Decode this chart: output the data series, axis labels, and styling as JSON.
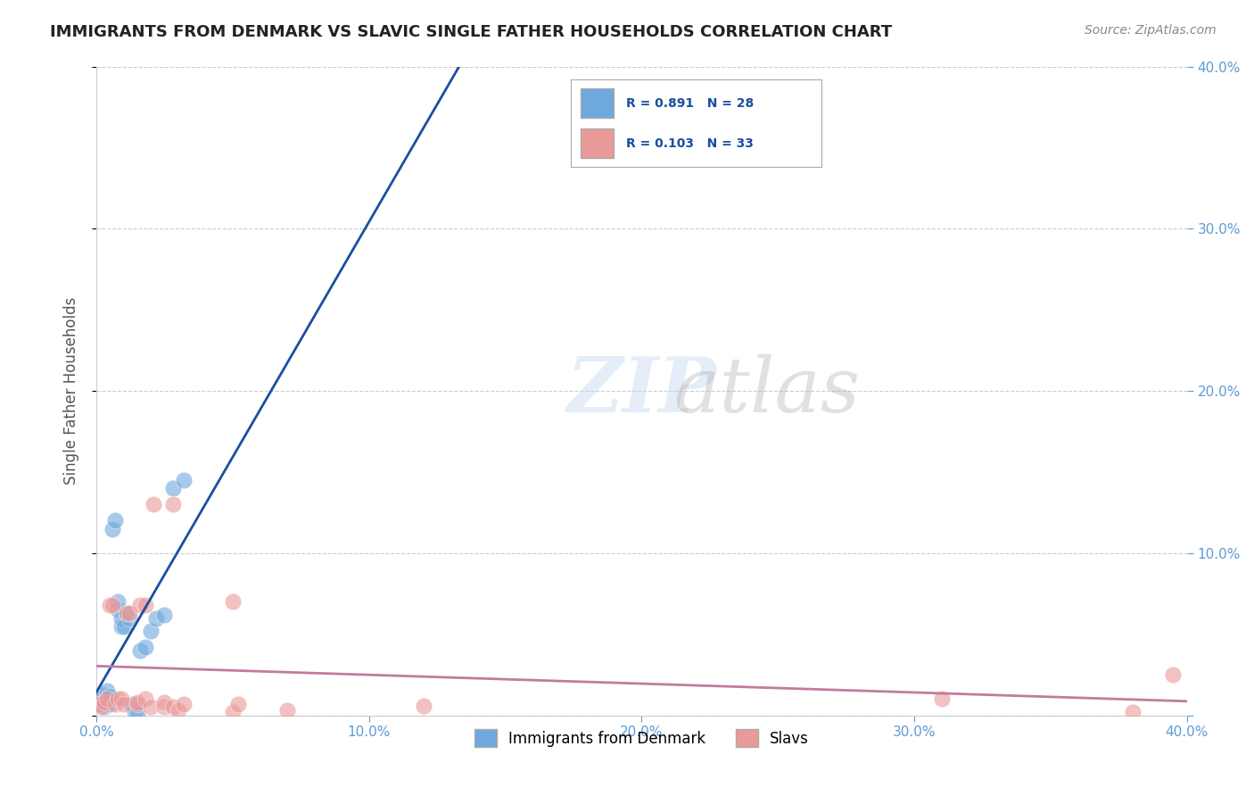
{
  "title": "IMMIGRANTS FROM DENMARK VS SLAVIC SINGLE FATHER HOUSEHOLDS CORRELATION CHART",
  "source": "Source: ZipAtlas.com",
  "xlabel": "",
  "ylabel": "Single Father Households",
  "xlim": [
    0,
    0.4
  ],
  "ylim": [
    0,
    0.4
  ],
  "xticks": [
    0.0,
    0.1,
    0.2,
    0.3,
    0.4
  ],
  "yticks": [
    0.0,
    0.1,
    0.2,
    0.3,
    0.4
  ],
  "xtick_labels": [
    "0.0%",
    "10.0%",
    "20.0%",
    "30.0%",
    "40.0%"
  ],
  "ytick_labels": [
    "",
    "10.0%",
    "20.0%",
    "30.0%",
    "40.0%"
  ],
  "blue_R": 0.891,
  "blue_N": 28,
  "pink_R": 0.103,
  "pink_N": 33,
  "blue_color": "#6fa8dc",
  "pink_color": "#ea9999",
  "blue_line_color": "#1a4f9e",
  "pink_line_color": "#c27ba0",
  "blue_scatter_x": [
    0.001,
    0.002,
    0.002,
    0.003,
    0.003,
    0.004,
    0.004,
    0.005,
    0.005,
    0.006,
    0.007,
    0.008,
    0.008,
    0.009,
    0.009,
    0.01,
    0.011,
    0.012,
    0.013,
    0.014,
    0.015,
    0.016,
    0.018,
    0.02,
    0.022,
    0.025,
    0.028,
    0.032
  ],
  "blue_scatter_y": [
    0.007,
    0.01,
    0.013,
    0.005,
    0.008,
    0.011,
    0.015,
    0.007,
    0.012,
    0.115,
    0.12,
    0.065,
    0.07,
    0.055,
    0.06,
    0.055,
    0.063,
    0.06,
    0.007,
    0.002,
    0.001,
    0.04,
    0.042,
    0.052,
    0.06,
    0.062,
    0.14,
    0.145
  ],
  "pink_scatter_x": [
    0.001,
    0.002,
    0.003,
    0.004,
    0.005,
    0.006,
    0.007,
    0.008,
    0.009,
    0.01,
    0.011,
    0.012,
    0.015,
    0.015,
    0.016,
    0.018,
    0.018,
    0.02,
    0.021,
    0.025,
    0.025,
    0.028,
    0.028,
    0.03,
    0.032,
    0.05,
    0.05,
    0.052,
    0.07,
    0.12,
    0.31,
    0.38,
    0.395
  ],
  "pink_scatter_y": [
    0.007,
    0.005,
    0.008,
    0.01,
    0.068,
    0.068,
    0.007,
    0.01,
    0.01,
    0.007,
    0.063,
    0.063,
    0.007,
    0.008,
    0.068,
    0.068,
    0.01,
    0.005,
    0.13,
    0.005,
    0.008,
    0.005,
    0.13,
    0.003,
    0.007,
    0.002,
    0.07,
    0.007,
    0.003,
    0.006,
    0.01,
    0.002,
    0.025
  ],
  "watermark_zip": "ZIP",
  "watermark_atlas": "atlas",
  "background_color": "#ffffff",
  "grid_color": "#cccccc",
  "title_color": "#222222",
  "axis_label_color": "#555555",
  "tick_color": "#5b9bd5",
  "source_color": "#888888"
}
